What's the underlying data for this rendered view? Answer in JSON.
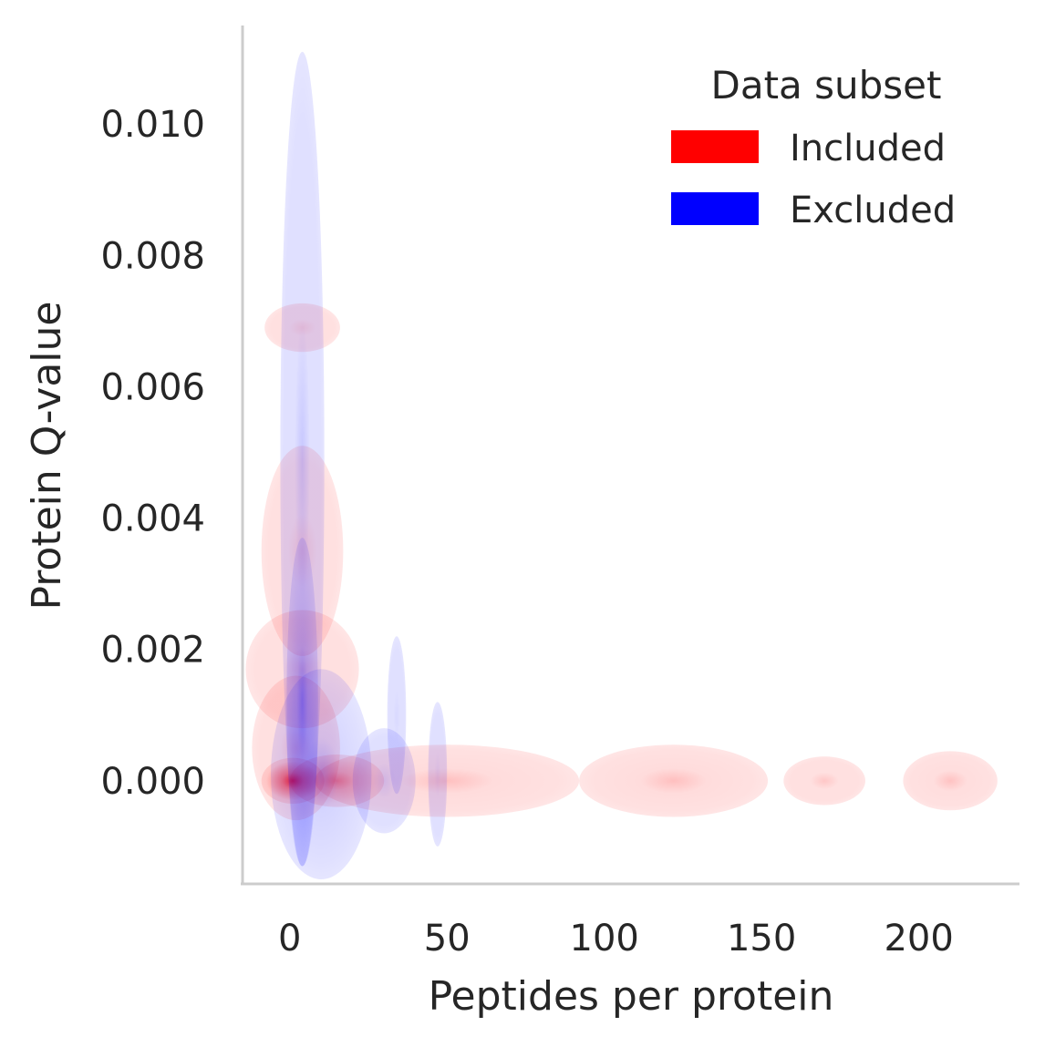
{
  "chart_data": {
    "type": "kde-density",
    "xlabel": "Peptides per protein",
    "ylabel": "Protein Q-value",
    "xlim": [
      -15,
      232
    ],
    "ylim": [
      -0.00157,
      0.0115
    ],
    "x_ticks": [
      0,
      50,
      100,
      150,
      200
    ],
    "y_ticks": [
      0.0,
      0.002,
      0.004,
      0.006,
      0.008,
      0.01
    ],
    "x_tick_labels": [
      "0",
      "50",
      "100",
      "150",
      "200"
    ],
    "y_tick_labels": [
      "0.000",
      "0.002",
      "0.004",
      "0.006",
      "0.008",
      "0.010"
    ],
    "grid": false,
    "legend": {
      "title": "Data subset",
      "placement": "top-right",
      "entries": [
        {
          "name": "Included",
          "color": "#ff0000"
        },
        {
          "name": "Excluded",
          "color": "#0000ff"
        }
      ]
    },
    "series": [
      {
        "name": "Included",
        "color": "#ff0000",
        "density_regions": [
          {
            "cx": 4,
            "cy": 0.0069,
            "rx": 12,
            "ry": 0.00037,
            "peak": 0.18
          },
          {
            "cx": 4,
            "cy": 0.0035,
            "rx": 13,
            "ry": 0.0016,
            "peak": 0.2
          },
          {
            "cx": 4,
            "cy": 0.0017,
            "rx": 18,
            "ry": 0.0009,
            "peak": 0.22
          },
          {
            "cx": 2,
            "cy": 0.0005,
            "rx": 14,
            "ry": 0.0011,
            "peak": 0.22
          },
          {
            "cx": 1,
            "cy": 0.0,
            "rx": 10,
            "ry": 0.00035,
            "peak": 0.85
          },
          {
            "cx": 15,
            "cy": 0.0,
            "rx": 15,
            "ry": 0.0004,
            "peak": 0.45
          },
          {
            "cx": 50,
            "cy": 0.0,
            "rx": 42,
            "ry": 0.00055,
            "peak": 0.25
          },
          {
            "cx": 122,
            "cy": 0.0,
            "rx": 30,
            "ry": 0.00055,
            "peak": 0.25
          },
          {
            "cx": 170,
            "cy": 0.0,
            "rx": 13,
            "ry": 0.00037,
            "peak": 0.22
          },
          {
            "cx": 210,
            "cy": 0.0,
            "rx": 15,
            "ry": 0.00045,
            "peak": 0.24
          }
        ]
      },
      {
        "name": "Excluded",
        "color": "#0000ff",
        "density_regions": [
          {
            "cx": 4,
            "cy": 0.0049,
            "rx": 7,
            "ry": 0.0062,
            "peak": 0.22
          },
          {
            "cx": 4,
            "cy": 0.0012,
            "rx": 5,
            "ry": 0.0025,
            "peak": 0.35
          },
          {
            "cx": 10,
            "cy": 0.0001,
            "rx": 16,
            "ry": 0.0016,
            "peak": 0.3
          },
          {
            "cx": 30,
            "cy": 0.0,
            "rx": 10,
            "ry": 0.0008,
            "peak": 0.18
          },
          {
            "cx": 34,
            "cy": 0.001,
            "rx": 3,
            "ry": 0.0012,
            "peak": 0.15
          },
          {
            "cx": 47,
            "cy": 0.0001,
            "rx": 3,
            "ry": 0.0011,
            "peak": 0.15
          }
        ]
      }
    ]
  }
}
